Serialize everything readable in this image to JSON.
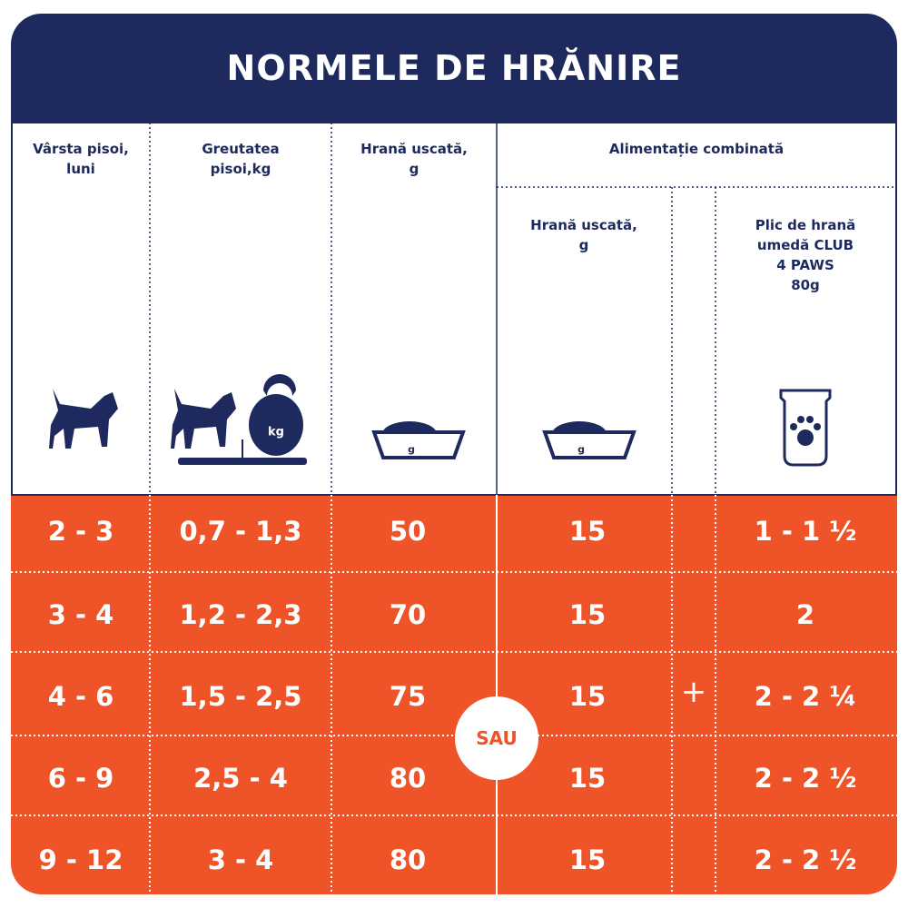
{
  "title": "NORMELE DE HRĂNIRE",
  "headers": {
    "age": [
      "Vârsta pisoi,",
      "luni"
    ],
    "weight": [
      "Greutatea",
      "pisoi,kg"
    ],
    "dry": [
      "Hrană uscată,",
      "g"
    ],
    "combined": [
      "Alimentație combinată"
    ],
    "combined_dry": [
      "Hrană uscată,",
      "g"
    ],
    "wet": [
      "Plic de hrană",
      "umedă CLUB",
      "4 PAWS",
      "80g"
    ]
  },
  "icon_labels": [
    "kg",
    "g",
    "g"
  ],
  "table": {
    "rows": [
      [
        "2 - 3",
        "0,7 - 1,3",
        "50",
        "15",
        "1 - 1 ½"
      ],
      [
        "3 - 4",
        "1,2 - 2,3",
        "70",
        "15",
        "2"
      ],
      [
        "4 - 6",
        "1,5 - 2,5",
        "75",
        "15",
        "2 - 2 ¼"
      ],
      [
        "6 - 9",
        "2,5 - 4",
        "80",
        "15",
        "2 - 2 ½"
      ],
      [
        "9 - 12",
        "3 - 4",
        "80",
        "15",
        "2 - 2 ½"
      ]
    ]
  },
  "or_label": "SAU",
  "plus_label": "+"
}
